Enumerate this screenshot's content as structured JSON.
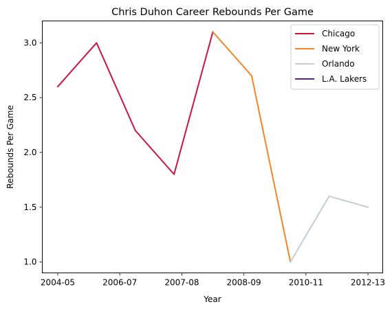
{
  "chart_data": {
    "type": "line",
    "title": "Chris Duhon Career Rebounds Per Game",
    "xlabel": "Year",
    "ylabel": "Rebounds Per Game",
    "x_tick_labels": [
      "2004-05",
      "2006-07",
      "2007-08",
      "2008-09",
      "2010-11",
      "2012-13"
    ],
    "y_ticks": [
      "1.0",
      "1.5",
      "2.0",
      "2.5",
      "3.0"
    ],
    "ylim": [
      0.9,
      3.2
    ],
    "grid": false,
    "legend_position": "top-right",
    "seasons": [
      "2004-05",
      "2005-06",
      "2006-07",
      "2007-08",
      "2008-09",
      "2009-10",
      "2010-11",
      "2011-12",
      "2012-13"
    ],
    "series": [
      {
        "name": "Chicago",
        "color": "#CE1141",
        "x": [
          "2004-05",
          "2005-06",
          "2006-07",
          "2007-08",
          "2008-09"
        ],
        "values": [
          2.6,
          3.0,
          2.2,
          1.8,
          3.1
        ]
      },
      {
        "name": "New York",
        "color": "#F58426",
        "x": [
          "2008-09",
          "2009-10",
          "2010-11"
        ],
        "values": [
          3.1,
          2.7,
          1.0
        ]
      },
      {
        "name": "Orlando",
        "color": "#C4CED4",
        "x": [
          "2010-11",
          "2011-12",
          "2012-13"
        ],
        "values": [
          1.0,
          1.6,
          1.5
        ]
      },
      {
        "name": "L.A. Lakers",
        "color": "#552583",
        "x": [],
        "values": []
      }
    ]
  }
}
